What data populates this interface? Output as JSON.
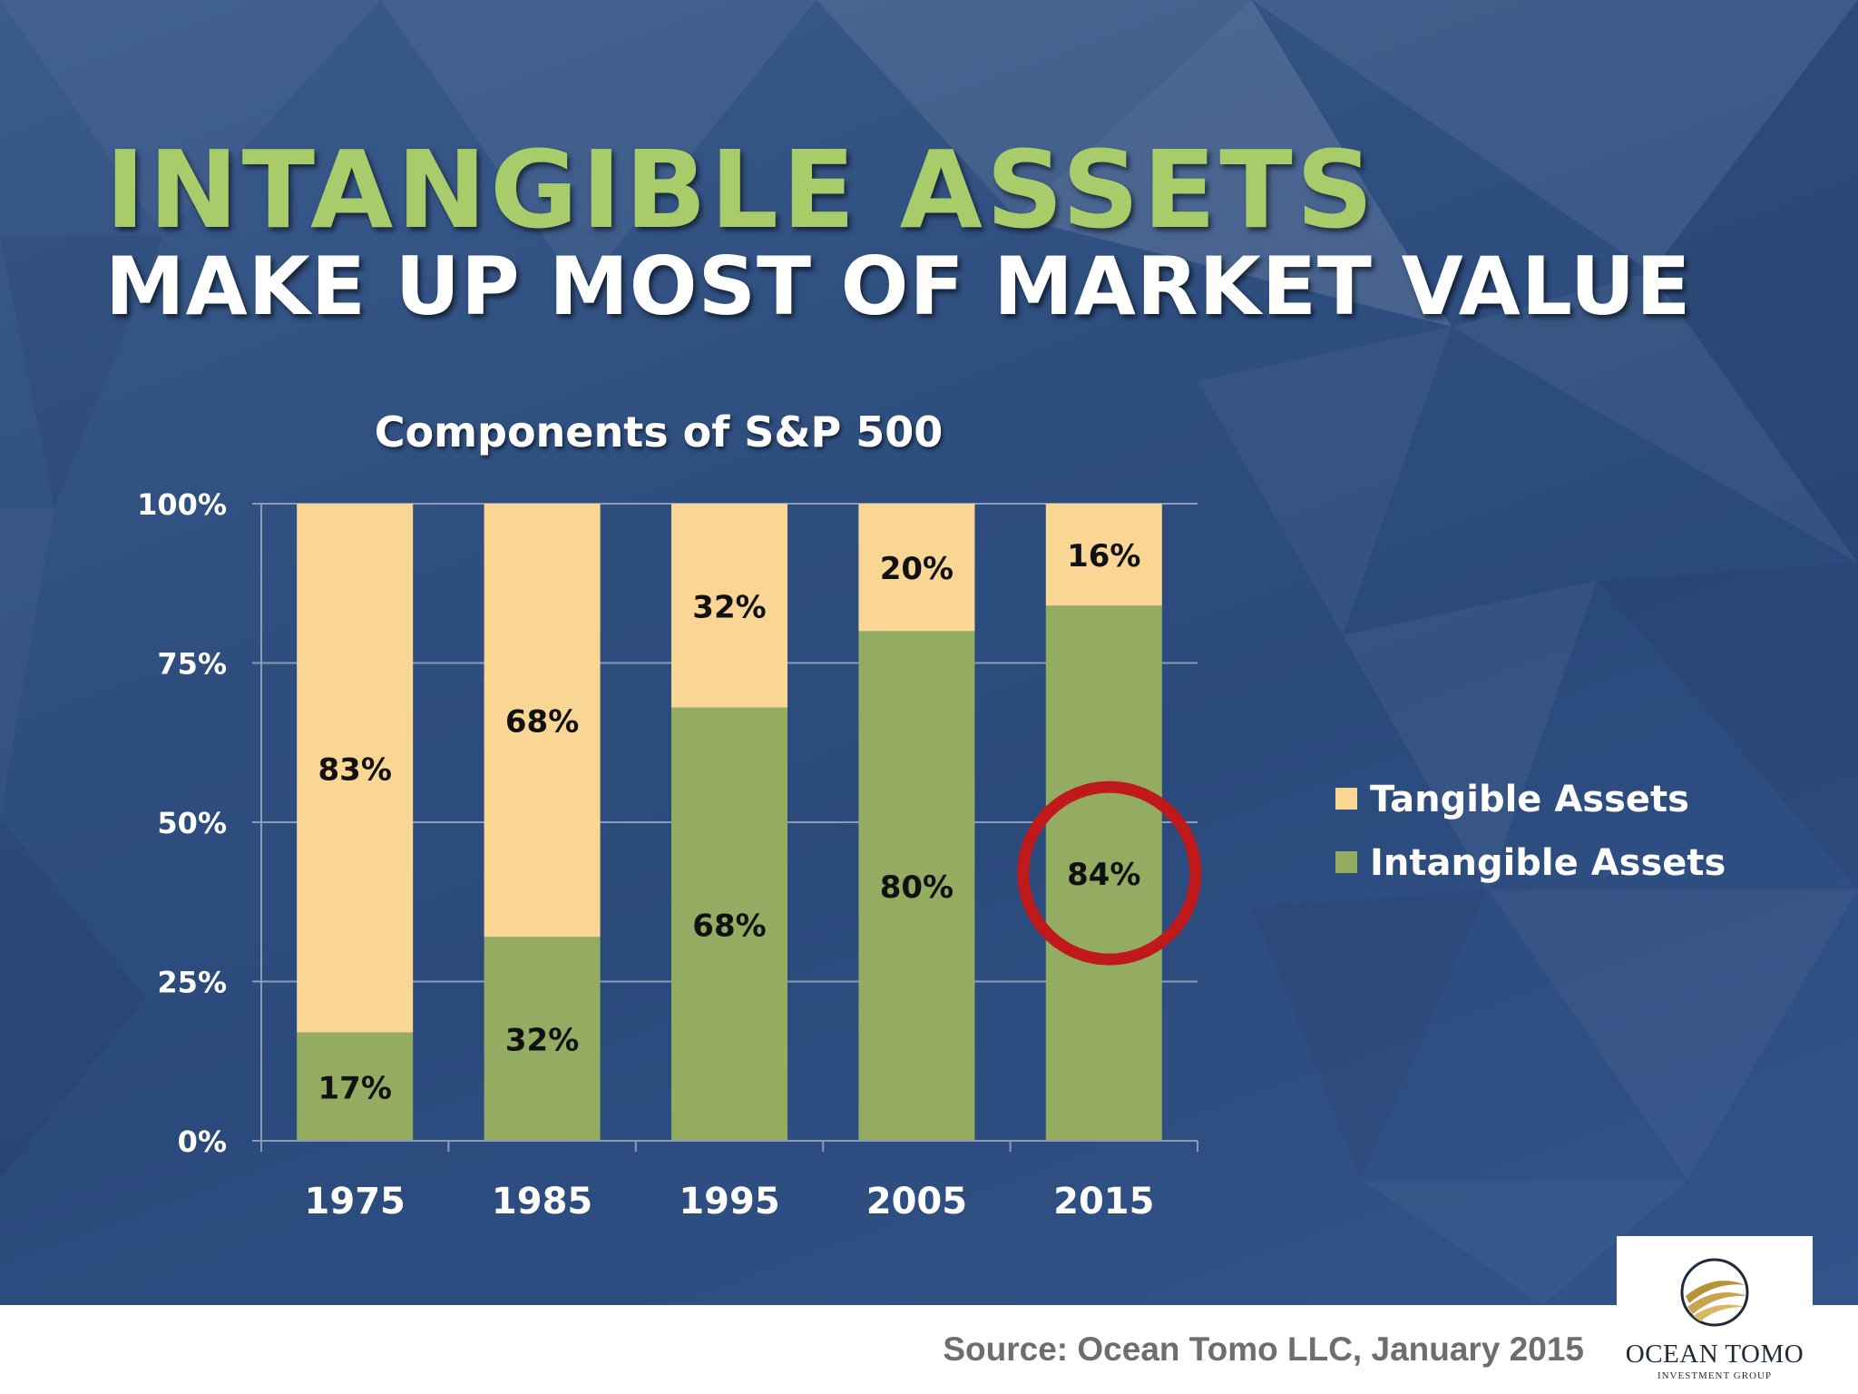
{
  "slide": {
    "title_main": "INTANGIBLE ASSETS",
    "title_sub": "MAKE UP MOST OF MARKET VALUE",
    "source": "Source: Ocean Tomo LLC, January 2015",
    "logo": {
      "name": "OCEAN TOMO",
      "tagline": "INVESTMENT GROUP",
      "mark": "circle-swoosh-icon"
    }
  },
  "colors": {
    "tangible": "#fad695",
    "intangible": "#94ab62",
    "highlight_circle": "#c0191b",
    "title_accent": "#a8cc6a"
  },
  "chart_data": {
    "type": "bar",
    "stacked": true,
    "title": "Components of S&P 500",
    "categories": [
      "1975",
      "1985",
      "1995",
      "2005",
      "2015"
    ],
    "series": [
      {
        "name": "Intangible Assets",
        "values": [
          17,
          32,
          68,
          80,
          84
        ],
        "labels": [
          "17%",
          "32%",
          "68%",
          "80%",
          "84%"
        ],
        "color": "#94ab62"
      },
      {
        "name": "Tangible Assets",
        "values": [
          83,
          68,
          32,
          20,
          16
        ],
        "labels": [
          "83%",
          "68%",
          "32%",
          "20%",
          "16%"
        ],
        "color": "#fad695"
      }
    ],
    "ylim": [
      0,
      100
    ],
    "yticks": [
      "0%",
      "25%",
      "50%",
      "75%",
      "100%"
    ],
    "ytick_values": [
      0,
      25,
      50,
      75,
      100
    ],
    "grid": true,
    "legend": {
      "position": "right",
      "items": [
        "Tangible Assets",
        "Intangible Assets"
      ]
    },
    "annotation": {
      "type": "circle",
      "category": "2015",
      "series": "Intangible Assets"
    }
  }
}
